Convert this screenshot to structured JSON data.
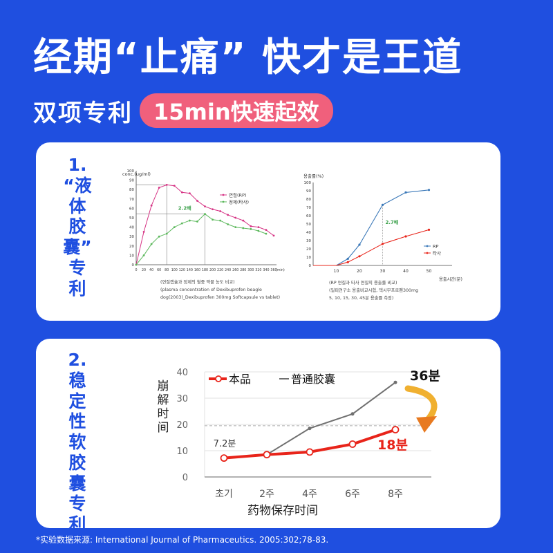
{
  "header": {
    "title": "经期“止痛” 快才是王道",
    "subtitle_prefix": "双项专利",
    "subtitle_pill": "15min快速起效"
  },
  "section1": {
    "num": "1.",
    "label_chars": [
      "“液",
      "体",
      "胶",
      "囊”",
      "专",
      "利"
    ],
    "left_chart": {
      "ylabel": "conc.(ug/ml)",
      "legend": [
        "연질(RP)",
        "정제(타사)"
      ],
      "annotation": "2.2배",
      "xunit": "(min)",
      "caption": [
        "(연질캡슐과 정제의 혈중 약물 농도 비교)",
        "(plasma concentration of Dexibuprofen beagle",
        "dog(2003)_Dexibuprofen 300mg Softcapsule vs tablet)"
      ]
    },
    "right_chart": {
      "ylabel": "용출률(%)",
      "legend": [
        "RP",
        "타사"
      ],
      "annotation": "2.7배",
      "xunit": "용출시간(분)",
      "caption": [
        "(RP 연질과 타사 연질의 용출률 비교)",
        "(일피연구소 용출비교시험, 덱시부프로펜300mg",
        "5, 10, 15, 30, 45분 용출률 측정)"
      ]
    }
  },
  "section2": {
    "num": "2.",
    "label_chars": [
      "稳",
      "定",
      "性",
      "软",
      "胶",
      "囊",
      "专",
      "利"
    ],
    "ylabel_chars": [
      "崩",
      "解",
      "时",
      "间"
    ],
    "xlabel": "药物保存时间",
    "legend": [
      "本品",
      "普通胶囊"
    ],
    "annotations": {
      "start": "7.2분",
      "gray_end": "36분",
      "red_end": "18분"
    }
  },
  "footer": "*实验数据来源: International Journal of Pharmaceutics. 2005:302;78-83.",
  "colors": {
    "background": "#1f4fe0",
    "pill": "#f0607c",
    "red_series": "#e8241a",
    "gray_series": "#707070",
    "pink_series": "#d63384",
    "green_series": "#5cb85c",
    "blue_series": "#3a78b8",
    "arrow": "#f0b030"
  },
  "chart_data": [
    {
      "type": "line",
      "ylabel": "conc.(ug/ml)",
      "xlabel": "(min)",
      "x": [
        0,
        20,
        40,
        60,
        80,
        100,
        120,
        140,
        160,
        180,
        200,
        220,
        240,
        260,
        280,
        300,
        320,
        340,
        360
      ],
      "x_ticks": [
        0,
        20,
        40,
        60,
        80,
        100,
        120,
        140,
        160,
        180,
        200,
        220,
        240,
        260,
        280,
        300,
        320,
        340,
        360
      ],
      "y_ticks": [
        0,
        10,
        20,
        30,
        40,
        50,
        60,
        70,
        80,
        90,
        100
      ],
      "xlim": [
        0,
        360
      ],
      "ylim": [
        0,
        100
      ],
      "series": [
        {
          "name": "연질(RP)",
          "x": [
            0,
            20,
            40,
            60,
            80,
            100,
            120,
            140,
            160,
            180,
            200,
            220,
            240,
            260,
            280,
            300,
            320,
            340,
            360
          ],
          "values": [
            0,
            35,
            63,
            82,
            85,
            84,
            77,
            76,
            68,
            62,
            59,
            57,
            53,
            50,
            47,
            41,
            40,
            37,
            31
          ]
        },
        {
          "name": "정제(타사)",
          "x": [
            0,
            20,
            40,
            60,
            80,
            100,
            120,
            140,
            160,
            180,
            200,
            220,
            240,
            260,
            280,
            300,
            320,
            340
          ],
          "values": [
            0,
            10,
            22,
            30,
            33,
            40,
            44,
            47,
            46,
            54,
            48,
            47,
            43,
            40,
            39,
            38,
            36,
            33
          ]
        }
      ],
      "grid": false,
      "legend_position": "top-right"
    },
    {
      "type": "line",
      "ylabel": "용출률(%)",
      "xlabel": "용출시간(분)",
      "x_ticks": [
        10,
        20,
        30,
        40,
        50
      ],
      "y_ticks": [
        0,
        10,
        20,
        30,
        40,
        50,
        60,
        70,
        80,
        90,
        100
      ],
      "xlim": [
        0,
        60
      ],
      "ylim": [
        0,
        100
      ],
      "series": [
        {
          "name": "RP",
          "x": [
            0,
            10,
            15,
            20,
            30,
            40,
            50
          ],
          "values": [
            0,
            0,
            8,
            25,
            73,
            88,
            91
          ]
        },
        {
          "name": "타사",
          "x": [
            0,
            10,
            15,
            20,
            30,
            40,
            50
          ],
          "values": [
            0,
            0,
            4,
            11,
            26,
            35,
            43
          ]
        }
      ],
      "grid": false,
      "legend_position": "right"
    },
    {
      "type": "line",
      "categories": [
        "초기",
        "2주",
        "4주",
        "6주",
        "8주"
      ],
      "series": [
        {
          "name": "本品",
          "values": [
            7.2,
            8.5,
            9.5,
            12.5,
            18
          ]
        },
        {
          "name": "普通胶囊",
          "values": [
            7.2,
            8.5,
            18.5,
            24,
            36
          ]
        }
      ],
      "y_ticks": [
        0,
        10,
        20,
        30,
        40
      ],
      "ylim": [
        0,
        40
      ],
      "reference_line": 19.5,
      "xlabel": "药物保存时间",
      "ylabel": "崩解时间",
      "grid": true,
      "legend_position": "top-left"
    }
  ]
}
